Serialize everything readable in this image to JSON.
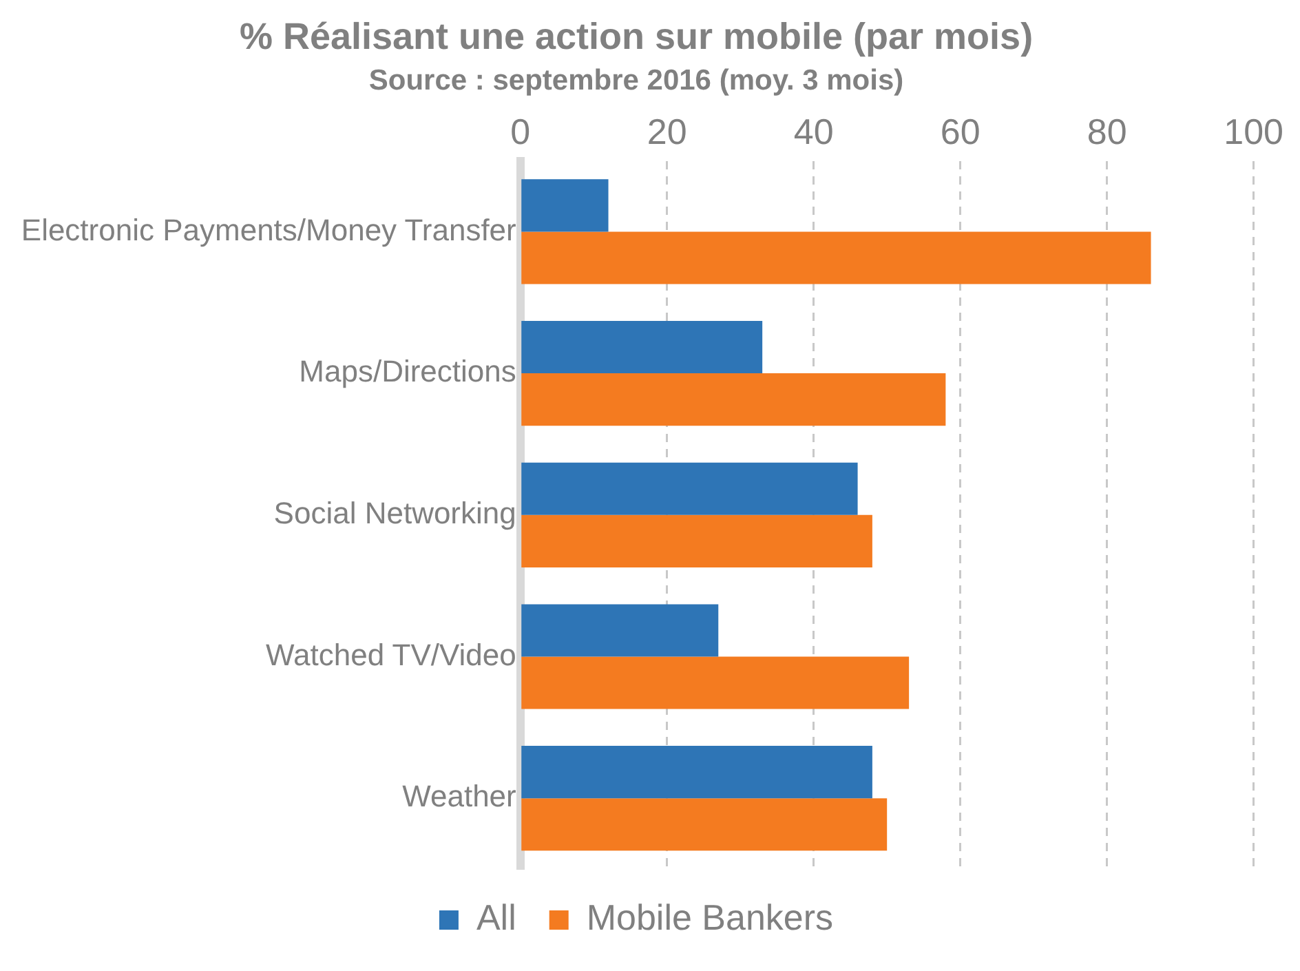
{
  "chart_data": {
    "type": "bar",
    "orientation": "horizontal",
    "title": "% Réalisant une action sur mobile (par mois)",
    "subtitle": "Source : septembre 2016 (moy. 3 mois)",
    "categories": [
      "Electronic Payments/Money Transfer",
      "Maps/Directions",
      "Social Networking",
      "Watched TV/Video",
      "Weather"
    ],
    "series": [
      {
        "name": "All",
        "color": "#2e75b6",
        "values": [
          12,
          33,
          46,
          27,
          48
        ]
      },
      {
        "name": "Mobile Bankers",
        "color": "#f47b20",
        "values": [
          86,
          58,
          48,
          53,
          50
        ]
      }
    ],
    "xlim": [
      0,
      100
    ],
    "xticks": [
      0,
      20,
      40,
      60,
      80,
      100
    ],
    "grid": "x",
    "legend": "bottom"
  }
}
